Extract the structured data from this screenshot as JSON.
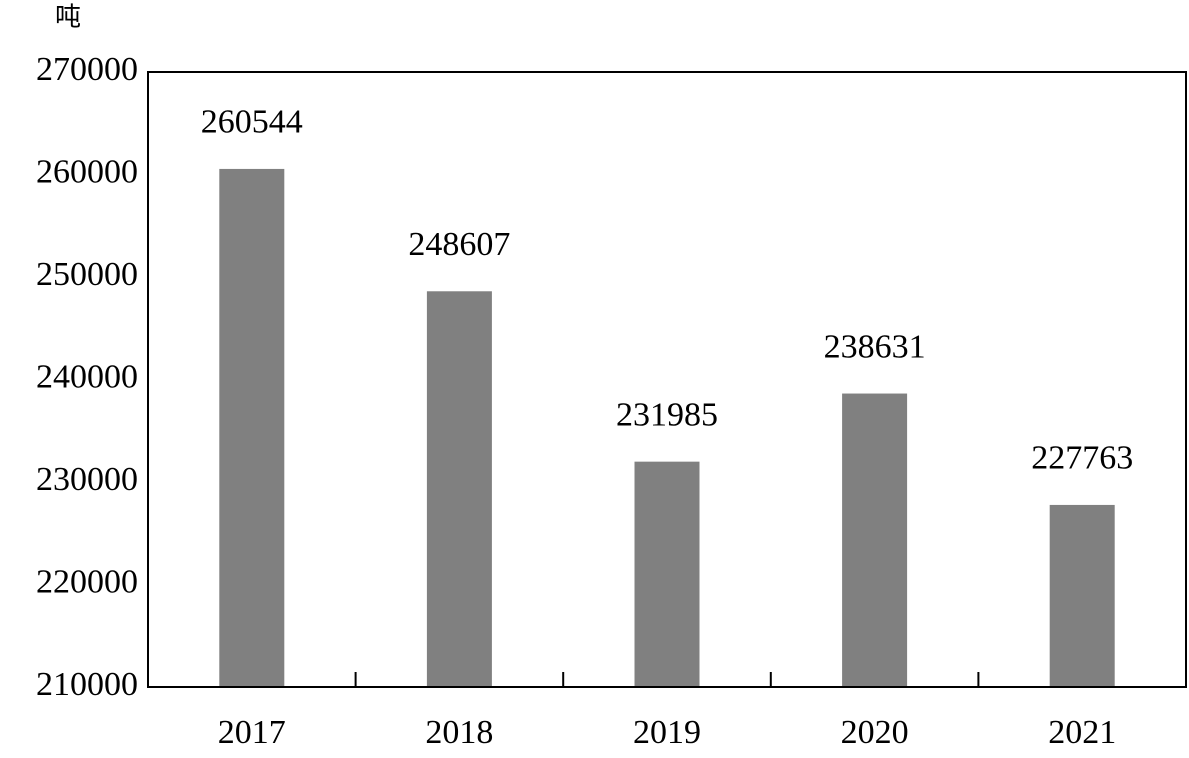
{
  "chart_data": {
    "type": "bar",
    "y_label": "吨",
    "categories": [
      "2017",
      "2018",
      "2019",
      "2020",
      "2021"
    ],
    "values": [
      260544,
      248607,
      231985,
      238631,
      227763
    ],
    "color": "#808080",
    "ylim": [
      210000,
      270000
    ],
    "yticks": [
      210000,
      220000,
      230000,
      240000,
      250000,
      260000,
      270000
    ],
    "grid": false
  }
}
